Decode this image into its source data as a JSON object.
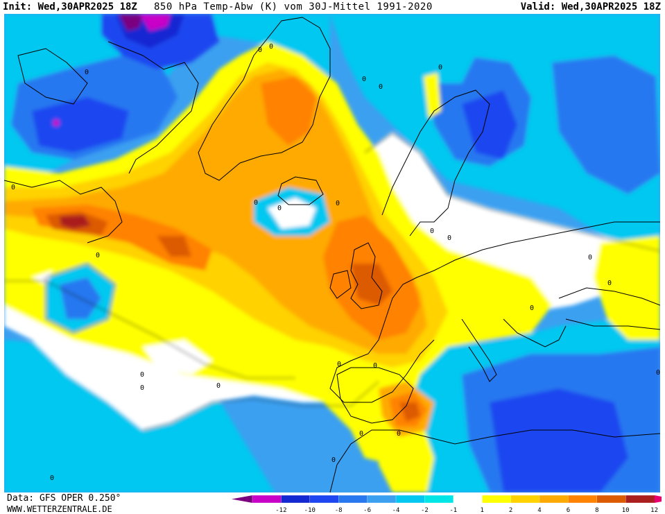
{
  "header": {
    "init": "Init: Wed,30APR2025 18Z",
    "title": "850 hPa Temp-Abw (K) vom 30J-Mittel 1991-2020",
    "valid": "Valid: Wed,30APR2025 18Z"
  },
  "footer": {
    "data_source": "Data: GFS OPER 0.250°",
    "website": "WWW.WETTERZENTRALE.DE"
  },
  "legend": {
    "labels": [
      "-12",
      "-10",
      "-8",
      "-6",
      "-4",
      "-2",
      "-1",
      "1",
      "2",
      "4",
      "6",
      "8",
      "10",
      "12"
    ],
    "colors": [
      "#7a0080",
      "#c800c8",
      "#1428d2",
      "#1e46f0",
      "#2878f0",
      "#3ca0f0",
      "#00c8f0",
      "#00e6e6",
      "#ffffff",
      "#ffff00",
      "#ffd200",
      "#ffaa00",
      "#ff8200",
      "#dc5a00",
      "#aa1e1e",
      "#e6006e"
    ]
  },
  "colors": {
    "zero_band": "#ffffff",
    "contour": "#000000",
    "coastline": "#000000"
  },
  "contour_labels": [
    "0",
    "0",
    "0",
    "0",
    "0",
    "0",
    "0",
    "0",
    "0",
    "0",
    "0",
    "0",
    "0",
    "0",
    "0",
    "0",
    "0",
    "0",
    "0",
    "0",
    "0",
    "0",
    "0",
    "0",
    "0",
    "0"
  ]
}
